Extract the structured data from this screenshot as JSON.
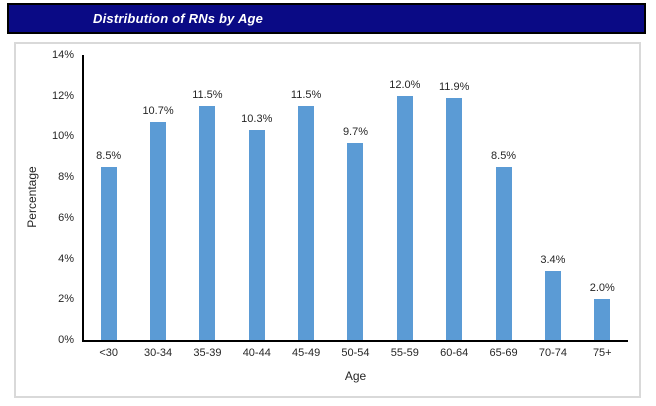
{
  "title_bar": {
    "text": "Distribution of RNs by Age",
    "bg_color": "#0a0a85",
    "border_color": "#000000",
    "text_color": "#ffffff"
  },
  "chart_data": {
    "type": "bar",
    "title": "Distribution of RNs by Age",
    "categories": [
      "<30",
      "30-34",
      "35-39",
      "40-44",
      "45-49",
      "50-54",
      "55-59",
      "60-64",
      "65-69",
      "70-74",
      "75+"
    ],
    "values": [
      8.5,
      10.7,
      11.5,
      10.3,
      11.5,
      9.7,
      12.0,
      11.9,
      8.5,
      3.4,
      2.0
    ],
    "data_labels": [
      "8.5%",
      "10.7%",
      "11.5%",
      "10.3%",
      "11.5%",
      "9.7%",
      "12.0%",
      "11.9%",
      "8.5%",
      "3.4%",
      "2.0%"
    ],
    "xlabel": "Age",
    "ylabel": "Percentage",
    "ylim": [
      0,
      14
    ],
    "y_tick_step": 2,
    "y_tick_labels": [
      "0%",
      "2%",
      "4%",
      "6%",
      "8%",
      "10%",
      "12%",
      "14%"
    ],
    "grid": false,
    "legend": "none",
    "bar_color": "#5b9bd5",
    "plot_bg": "#ffffff",
    "frame_border_color": "#d9d9d9"
  }
}
